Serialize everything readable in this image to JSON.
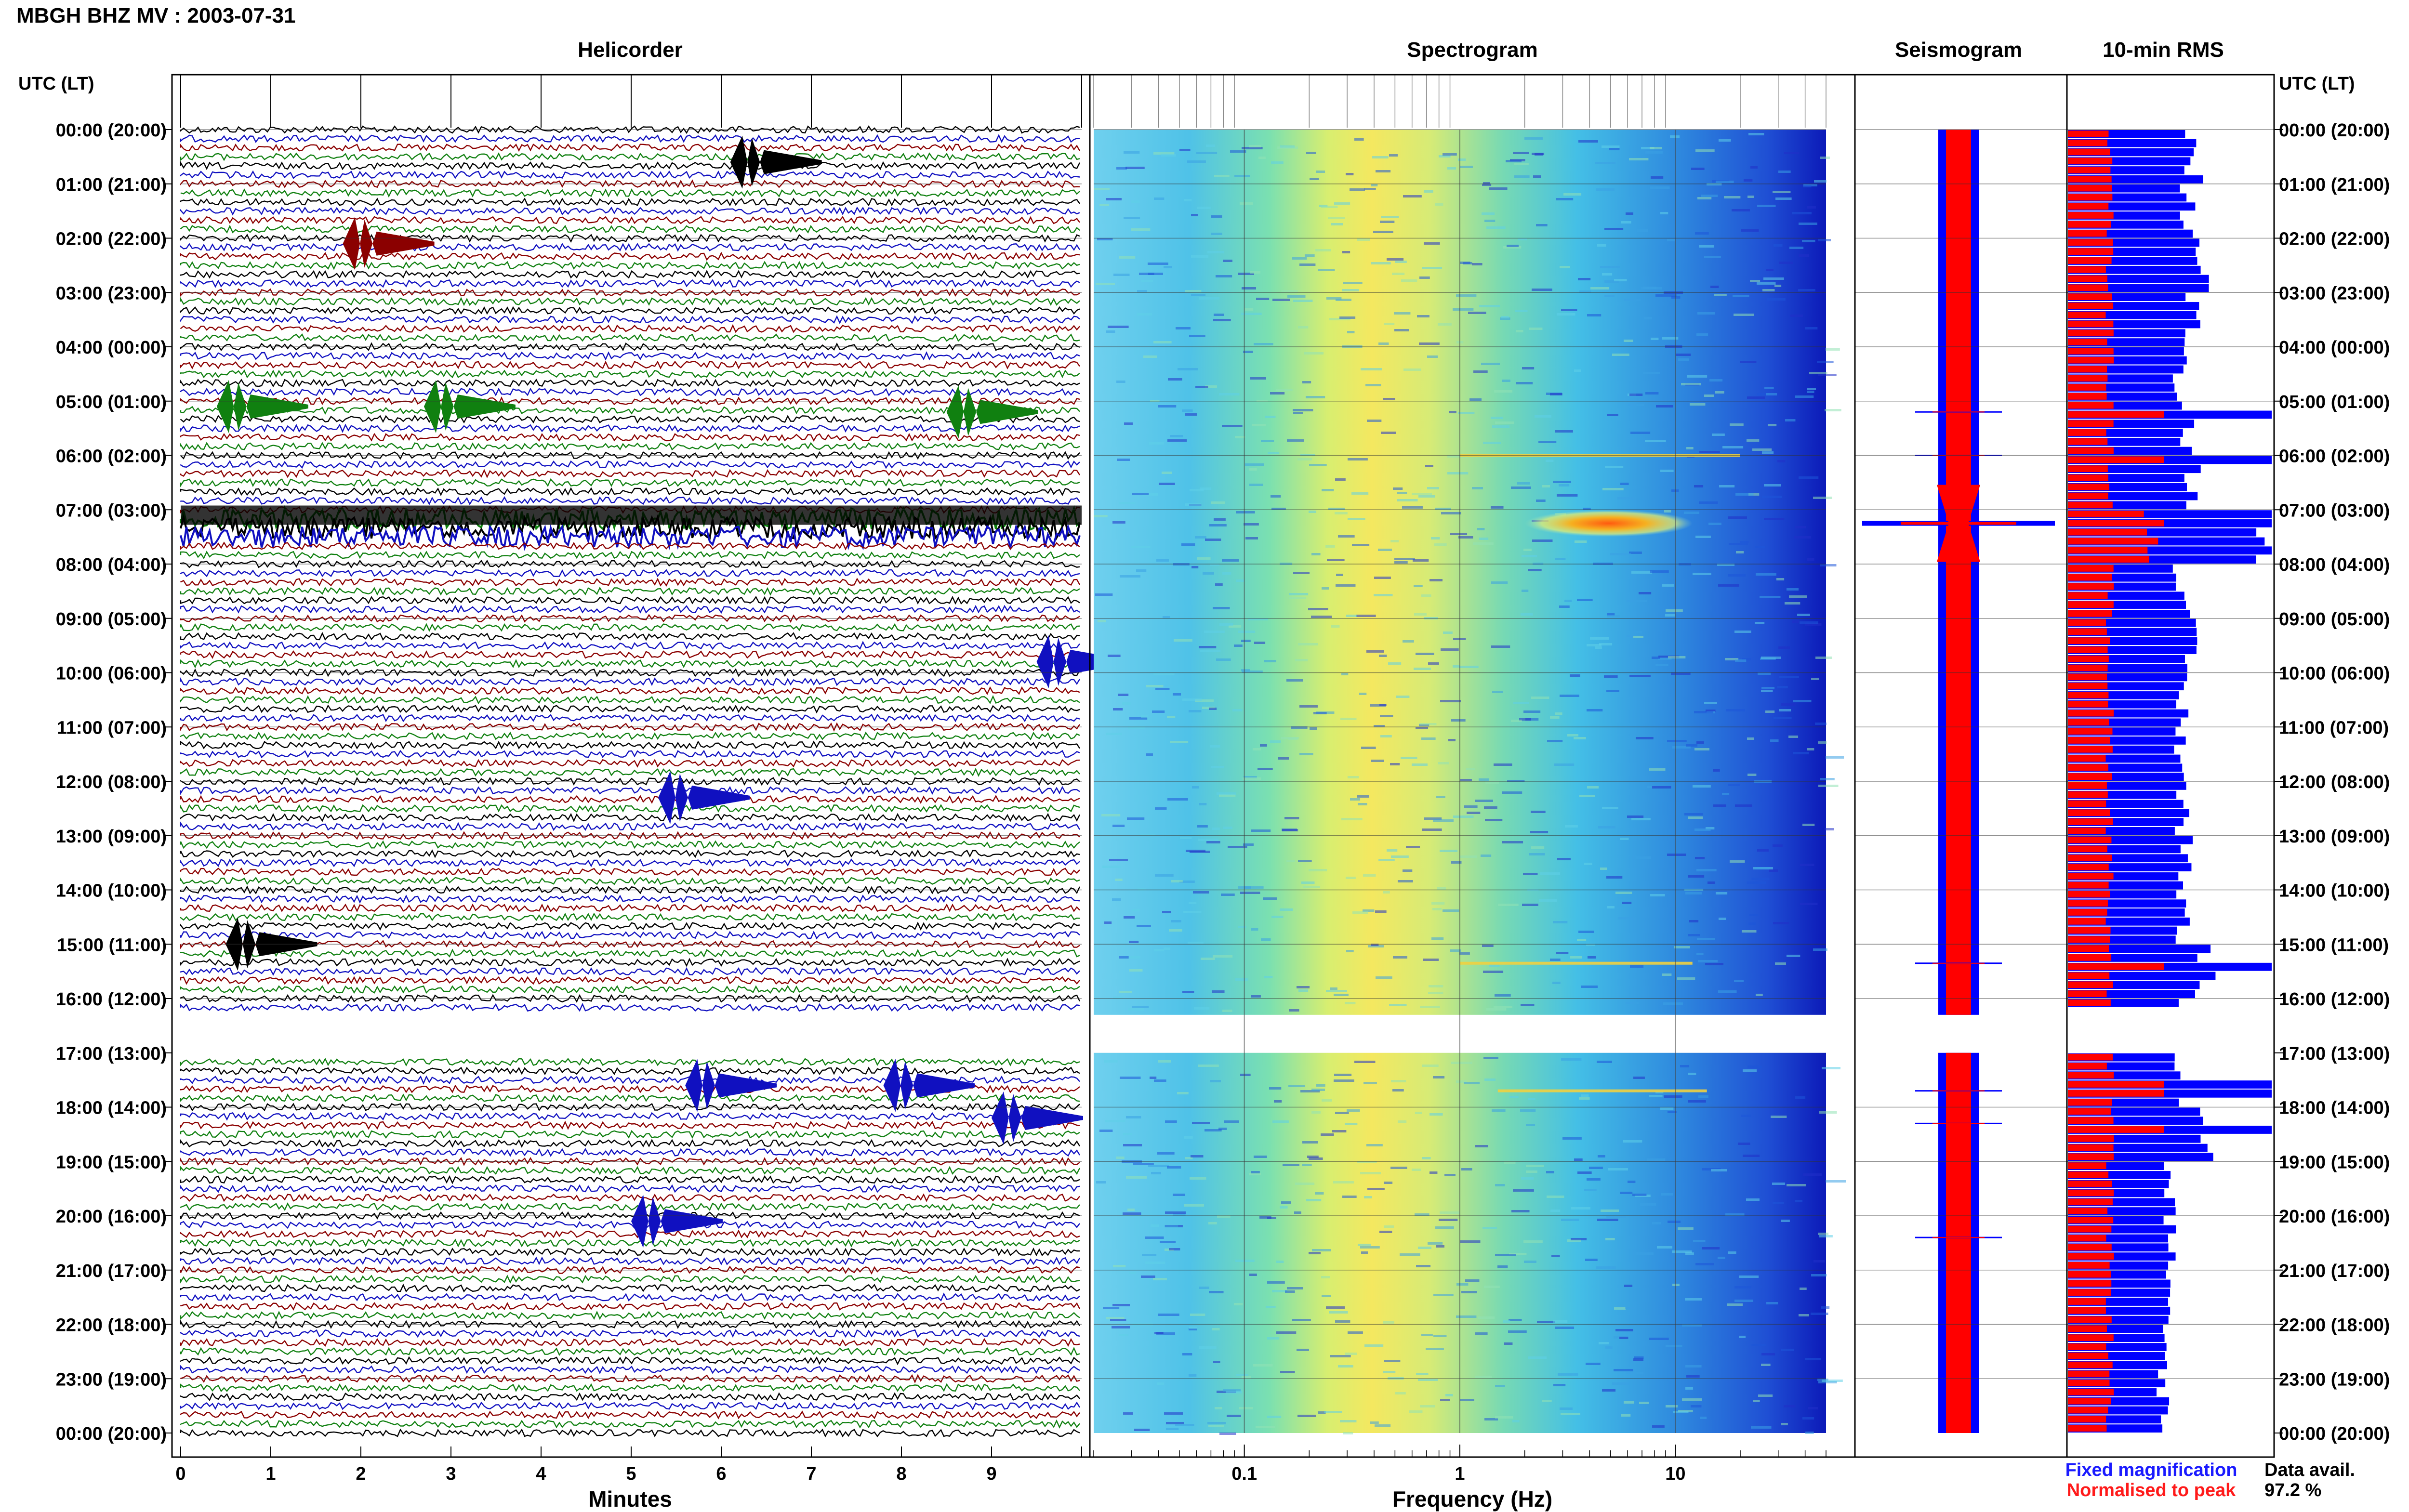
{
  "figure": {
    "title": "MBGH BHZ MV : 2003-07-31",
    "panel_titles": {
      "helicorder": "Helicorder",
      "spectrogram": "Spectrogram",
      "seismogram": "Seismogram",
      "rms": "10-min RMS"
    },
    "time_axis_label_left": "UTC (LT)",
    "time_axis_label_right": "UTC (LT)",
    "hour_labels": [
      "00:00 (20:00)",
      "01:00 (21:00)",
      "02:00 (22:00)",
      "03:00 (23:00)",
      "04:00 (00:00)",
      "05:00 (01:00)",
      "06:00 (02:00)",
      "07:00 (03:00)",
      "08:00 (04:00)",
      "09:00 (05:00)",
      "10:00 (06:00)",
      "11:00 (07:00)",
      "12:00 (08:00)",
      "13:00 (09:00)",
      "14:00 (10:00)",
      "15:00 (11:00)",
      "16:00 (12:00)",
      "17:00 (13:00)",
      "18:00 (14:00)",
      "19:00 (15:00)",
      "20:00 (16:00)",
      "21:00 (17:00)",
      "22:00 (18:00)",
      "23:00 (19:00)",
      "00:00 (20:00)"
    ],
    "minutes_xlabel": "Minutes",
    "minutes_ticks": [
      "0",
      "1",
      "2",
      "3",
      "4",
      "5",
      "6",
      "7",
      "8",
      "9"
    ],
    "freq_xlabel": "Frequency (Hz)",
    "freq_ticks": [
      "0.1",
      "1",
      "10"
    ],
    "legend": {
      "fixed": "Fixed magnification",
      "normalised": "Normalised to peak",
      "fixed_color": "#1a1aff",
      "normalised_color": "#ff1a1a"
    },
    "data_avail_label": "Data avail.",
    "data_avail_value": "97.2 %"
  },
  "chart_data": {
    "type": "heatmap",
    "panels": [
      "helicorder",
      "spectrogram",
      "seismogram",
      "rms"
    ],
    "time_range_utc_hours": [
      0,
      24
    ],
    "data_gap_utc_hours": [
      16.3,
      17.0
    ],
    "helicorder": {
      "xlim_minutes": [
        0,
        10
      ],
      "trace_colors": [
        "#000000",
        "#1010c0",
        "#8b0000",
        "#108010"
      ],
      "events": [
        {
          "hour": 0.6,
          "minute": 6.1,
          "color": "black"
        },
        {
          "hour": 2.1,
          "minute": 1.8,
          "color": "darkred"
        },
        {
          "hour": 5.1,
          "minute": 0.4,
          "color": "green"
        },
        {
          "hour": 5.1,
          "minute": 2.7,
          "color": "green"
        },
        {
          "hour": 5.2,
          "minute": 8.5,
          "color": "green"
        },
        {
          "hour": 7.1,
          "minute": 0.0,
          "color": "black",
          "note": "sustained high-amplitude tremor band"
        },
        {
          "hour": 9.8,
          "minute": 9.5,
          "color": "blue"
        },
        {
          "hour": 12.3,
          "minute": 5.3,
          "color": "blue"
        },
        {
          "hour": 15.0,
          "minute": 0.5,
          "color": "black"
        },
        {
          "hour": 17.6,
          "minute": 5.6,
          "color": "blue"
        },
        {
          "hour": 17.6,
          "minute": 7.8,
          "color": "blue"
        },
        {
          "hour": 18.2,
          "minute": 9.0,
          "color": "blue"
        },
        {
          "hour": 20.1,
          "minute": 5.0,
          "color": "blue"
        }
      ]
    },
    "spectrogram": {
      "xscale": "log",
      "xlim_hz": [
        0.02,
        50
      ],
      "dominant_band_hz": [
        0.25,
        0.5
      ],
      "events": [
        {
          "hour": 7.25,
          "freq_hz": [
            2.0,
            12.0
          ],
          "note": "strong high-frequency energy"
        },
        {
          "hour": 6.0,
          "freq_hz": [
            1.0,
            20.0
          ]
        },
        {
          "hour": 15.35,
          "freq_hz": [
            1.0,
            12.0
          ]
        },
        {
          "hour": 17.7,
          "freq_hz": [
            1.5,
            14.0
          ]
        }
      ]
    },
    "seismogram": {
      "series": [
        {
          "name": "Fixed magnification",
          "color": "#0000ff"
        },
        {
          "name": "Normalised to peak",
          "color": "#ff0000"
        }
      ],
      "peak_hours": [
        7.25,
        5.2,
        6.0,
        15.35,
        17.7,
        18.3,
        20.4
      ]
    },
    "rms_10min": {
      "series": [
        {
          "name": "Fixed magnification",
          "color": "#0000ff",
          "hourly_values": [
            2.1,
            2.0,
            2.2,
            2.1,
            1.9,
            2.0,
            2.1,
            3.4,
            1.9,
            2.0,
            1.9,
            1.9,
            1.9,
            2.0,
            1.9,
            2.3,
            1.9,
            1.9,
            2.3,
            1.7,
            1.7,
            1.6,
            1.6,
            1.6
          ]
        },
        {
          "name": "Normalised to peak",
          "color": "#ff0000",
          "hourly_values": [
            0.7,
            0.7,
            0.7,
            0.7,
            0.7,
            0.7,
            0.7,
            1.4,
            0.7,
            0.7,
            0.7,
            0.7,
            0.7,
            0.7,
            0.7,
            0.7,
            0.7,
            0.7,
            0.7,
            0.7,
            0.7,
            0.7,
            0.7,
            0.7
          ]
        }
      ],
      "spike_hours": [
        5.2,
        6.0,
        7.2,
        15.3,
        17.6,
        18.3
      ]
    }
  }
}
